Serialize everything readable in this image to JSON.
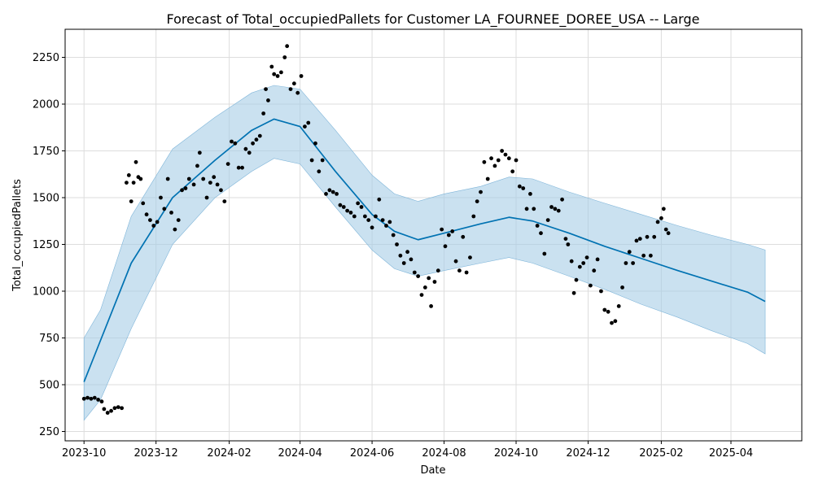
{
  "chart_data": {
    "type": "line",
    "title": "Forecast of Total_occupiedPallets for Customer LA_FOURNEE_DOREE_USA -- Large",
    "xlabel": "Date",
    "ylabel": "Total_occupiedPallets",
    "grid": true,
    "xlim": [
      "2023-09-15",
      "2025-05-31"
    ],
    "ylim": [
      200,
      2400
    ],
    "x_ticks": [
      "2023-10",
      "2023-12",
      "2024-02",
      "2024-04",
      "2024-06",
      "2024-08",
      "2024-10",
      "2024-12",
      "2025-02",
      "2025-04"
    ],
    "y_ticks": [
      250,
      500,
      750,
      1000,
      1250,
      1500,
      1750,
      2000,
      2250
    ],
    "colors": {
      "forecast": "#0072B2",
      "band": "#A6CDE6",
      "observed": "#000000",
      "grid": "#dddddd"
    },
    "series": [
      {
        "kind": "forecast",
        "points": [
          [
            "2023-10-01",
            515
          ],
          [
            "2023-11-10",
            1150
          ],
          [
            "2023-12-15",
            1500
          ],
          [
            "2024-01-20",
            1700
          ],
          [
            "2024-02-20",
            1860
          ],
          [
            "2024-03-10",
            1920
          ],
          [
            "2024-04-01",
            1880
          ],
          [
            "2024-05-01",
            1640
          ],
          [
            "2024-06-01",
            1410
          ],
          [
            "2024-06-20",
            1320
          ],
          [
            "2024-07-10",
            1275
          ],
          [
            "2024-08-01",
            1310
          ],
          [
            "2024-09-01",
            1360
          ],
          [
            "2024-09-25",
            1395
          ],
          [
            "2024-10-15",
            1375
          ],
          [
            "2024-11-15",
            1310
          ],
          [
            "2024-12-15",
            1240
          ],
          [
            "2025-01-15",
            1175
          ],
          [
            "2025-02-15",
            1110
          ],
          [
            "2025-03-15",
            1055
          ],
          [
            "2025-04-15",
            995
          ],
          [
            "2025-04-30",
            945
          ]
        ]
      },
      {
        "kind": "uncertainty",
        "points": [
          [
            "2023-10-01",
            310,
            750
          ],
          [
            "2023-10-15",
            420,
            900
          ],
          [
            "2023-11-10",
            800,
            1400
          ],
          [
            "2023-12-15",
            1250,
            1760
          ],
          [
            "2024-01-20",
            1500,
            1930
          ],
          [
            "2024-02-20",
            1640,
            2060
          ],
          [
            "2024-03-10",
            1710,
            2100
          ],
          [
            "2024-04-01",
            1680,
            2080
          ],
          [
            "2024-05-01",
            1450,
            1860
          ],
          [
            "2024-06-01",
            1220,
            1620
          ],
          [
            "2024-06-20",
            1120,
            1520
          ],
          [
            "2024-07-10",
            1080,
            1480
          ],
          [
            "2024-08-01",
            1110,
            1520
          ],
          [
            "2024-09-01",
            1150,
            1560
          ],
          [
            "2024-09-25",
            1180,
            1610
          ],
          [
            "2024-10-15",
            1150,
            1600
          ],
          [
            "2024-11-15",
            1080,
            1530
          ],
          [
            "2024-12-15",
            1010,
            1470
          ],
          [
            "2025-01-15",
            930,
            1410
          ],
          [
            "2025-02-15",
            860,
            1350
          ],
          [
            "2025-03-15",
            790,
            1300
          ],
          [
            "2025-04-15",
            720,
            1250
          ],
          [
            "2025-04-30",
            665,
            1220
          ]
        ]
      },
      {
        "kind": "observed",
        "points": [
          [
            "2023-10-01",
            425
          ],
          [
            "2023-10-04",
            430
          ],
          [
            "2023-10-07",
            425
          ],
          [
            "2023-10-10",
            430
          ],
          [
            "2023-10-13",
            420
          ],
          [
            "2023-10-16",
            410
          ],
          [
            "2023-10-18",
            370
          ],
          [
            "2023-10-21",
            350
          ],
          [
            "2023-10-24",
            360
          ],
          [
            "2023-10-27",
            375
          ],
          [
            "2023-10-30",
            380
          ],
          [
            "2023-11-02",
            375
          ],
          [
            "2023-11-06",
            1580
          ],
          [
            "2023-11-08",
            1620
          ],
          [
            "2023-11-10",
            1480
          ],
          [
            "2023-11-12",
            1580
          ],
          [
            "2023-11-14",
            1690
          ],
          [
            "2023-11-16",
            1610
          ],
          [
            "2023-11-18",
            1600
          ],
          [
            "2023-11-20",
            1470
          ],
          [
            "2023-11-23",
            1410
          ],
          [
            "2023-11-26",
            1380
          ],
          [
            "2023-11-29",
            1350
          ],
          [
            "2023-12-02",
            1370
          ],
          [
            "2023-12-05",
            1500
          ],
          [
            "2023-12-08",
            1440
          ],
          [
            "2023-12-11",
            1600
          ],
          [
            "2023-12-14",
            1420
          ],
          [
            "2023-12-17",
            1330
          ],
          [
            "2023-12-20",
            1380
          ],
          [
            "2023-12-23",
            1540
          ],
          [
            "2023-12-26",
            1550
          ],
          [
            "2023-12-29",
            1600
          ],
          [
            "2024-01-02",
            1570
          ],
          [
            "2024-01-05",
            1670
          ],
          [
            "2024-01-07",
            1740
          ],
          [
            "2024-01-10",
            1600
          ],
          [
            "2024-01-13",
            1500
          ],
          [
            "2024-01-16",
            1580
          ],
          [
            "2024-01-19",
            1610
          ],
          [
            "2024-01-22",
            1570
          ],
          [
            "2024-01-25",
            1540
          ],
          [
            "2024-01-28",
            1480
          ],
          [
            "2024-01-31",
            1680
          ],
          [
            "2024-02-03",
            1800
          ],
          [
            "2024-02-06",
            1790
          ],
          [
            "2024-02-09",
            1660
          ],
          [
            "2024-02-12",
            1660
          ],
          [
            "2024-02-15",
            1760
          ],
          [
            "2024-02-18",
            1740
          ],
          [
            "2024-02-21",
            1790
          ],
          [
            "2024-02-24",
            1810
          ],
          [
            "2024-02-27",
            1830
          ],
          [
            "2024-03-01",
            1950
          ],
          [
            "2024-03-03",
            2080
          ],
          [
            "2024-03-05",
            2020
          ],
          [
            "2024-03-08",
            2200
          ],
          [
            "2024-03-10",
            2160
          ],
          [
            "2024-03-13",
            2150
          ],
          [
            "2024-03-16",
            2170
          ],
          [
            "2024-03-19",
            2250
          ],
          [
            "2024-03-21",
            2310
          ],
          [
            "2024-03-24",
            2080
          ],
          [
            "2024-03-27",
            2110
          ],
          [
            "2024-03-30",
            2060
          ],
          [
            "2024-04-02",
            2150
          ],
          [
            "2024-04-05",
            1880
          ],
          [
            "2024-04-08",
            1900
          ],
          [
            "2024-04-11",
            1700
          ],
          [
            "2024-04-14",
            1790
          ],
          [
            "2024-04-17",
            1640
          ],
          [
            "2024-04-20",
            1700
          ],
          [
            "2024-04-23",
            1520
          ],
          [
            "2024-04-26",
            1540
          ],
          [
            "2024-04-29",
            1530
          ],
          [
            "2024-05-02",
            1520
          ],
          [
            "2024-05-05",
            1460
          ],
          [
            "2024-05-08",
            1450
          ],
          [
            "2024-05-11",
            1430
          ],
          [
            "2024-05-14",
            1420
          ],
          [
            "2024-05-17",
            1400
          ],
          [
            "2024-05-20",
            1470
          ],
          [
            "2024-05-23",
            1450
          ],
          [
            "2024-05-26",
            1400
          ],
          [
            "2024-05-29",
            1380
          ],
          [
            "2024-06-01",
            1340
          ],
          [
            "2024-06-04",
            1400
          ],
          [
            "2024-06-07",
            1490
          ],
          [
            "2024-06-10",
            1380
          ],
          [
            "2024-06-13",
            1350
          ],
          [
            "2024-06-16",
            1370
          ],
          [
            "2024-06-19",
            1300
          ],
          [
            "2024-06-22",
            1250
          ],
          [
            "2024-06-25",
            1190
          ],
          [
            "2024-06-28",
            1150
          ],
          [
            "2024-07-01",
            1210
          ],
          [
            "2024-07-04",
            1170
          ],
          [
            "2024-07-07",
            1100
          ],
          [
            "2024-07-10",
            1080
          ],
          [
            "2024-07-13",
            980
          ],
          [
            "2024-07-16",
            1020
          ],
          [
            "2024-07-19",
            1070
          ],
          [
            "2024-07-21",
            920
          ],
          [
            "2024-07-24",
            1050
          ],
          [
            "2024-07-27",
            1110
          ],
          [
            "2024-07-30",
            1330
          ],
          [
            "2024-08-02",
            1240
          ],
          [
            "2024-08-05",
            1300
          ],
          [
            "2024-08-08",
            1320
          ],
          [
            "2024-08-11",
            1160
          ],
          [
            "2024-08-14",
            1110
          ],
          [
            "2024-08-17",
            1290
          ],
          [
            "2024-08-20",
            1100
          ],
          [
            "2024-08-23",
            1180
          ],
          [
            "2024-08-26",
            1400
          ],
          [
            "2024-08-29",
            1480
          ],
          [
            "2024-09-01",
            1530
          ],
          [
            "2024-09-04",
            1690
          ],
          [
            "2024-09-07",
            1600
          ],
          [
            "2024-09-10",
            1710
          ],
          [
            "2024-09-13",
            1670
          ],
          [
            "2024-09-16",
            1700
          ],
          [
            "2024-09-19",
            1750
          ],
          [
            "2024-09-22",
            1730
          ],
          [
            "2024-09-25",
            1710
          ],
          [
            "2024-09-28",
            1640
          ],
          [
            "2024-10-01",
            1700
          ],
          [
            "2024-10-04",
            1560
          ],
          [
            "2024-10-07",
            1550
          ],
          [
            "2024-10-10",
            1440
          ],
          [
            "2024-10-13",
            1520
          ],
          [
            "2024-10-16",
            1440
          ],
          [
            "2024-10-19",
            1350
          ],
          [
            "2024-10-22",
            1310
          ],
          [
            "2024-10-25",
            1200
          ],
          [
            "2024-10-28",
            1380
          ],
          [
            "2024-10-31",
            1450
          ],
          [
            "2024-11-03",
            1440
          ],
          [
            "2024-11-06",
            1430
          ],
          [
            "2024-11-09",
            1490
          ],
          [
            "2024-11-12",
            1280
          ],
          [
            "2024-11-14",
            1250
          ],
          [
            "2024-11-17",
            1160
          ],
          [
            "2024-11-19",
            990
          ],
          [
            "2024-11-21",
            1060
          ],
          [
            "2024-11-24",
            1130
          ],
          [
            "2024-11-27",
            1150
          ],
          [
            "2024-11-30",
            1180
          ],
          [
            "2024-12-03",
            1030
          ],
          [
            "2024-12-06",
            1110
          ],
          [
            "2024-12-09",
            1170
          ],
          [
            "2024-12-12",
            1000
          ],
          [
            "2024-12-15",
            900
          ],
          [
            "2024-12-18",
            890
          ],
          [
            "2024-12-21",
            830
          ],
          [
            "2024-12-24",
            840
          ],
          [
            "2024-12-27",
            920
          ],
          [
            "2024-12-30",
            1020
          ],
          [
            "2025-01-02",
            1150
          ],
          [
            "2025-01-05",
            1210
          ],
          [
            "2025-01-08",
            1150
          ],
          [
            "2025-01-11",
            1270
          ],
          [
            "2025-01-14",
            1280
          ],
          [
            "2025-01-17",
            1190
          ],
          [
            "2025-01-20",
            1290
          ],
          [
            "2025-01-23",
            1190
          ],
          [
            "2025-01-26",
            1290
          ],
          [
            "2025-01-29",
            1370
          ],
          [
            "2025-02-01",
            1390
          ],
          [
            "2025-02-03",
            1440
          ],
          [
            "2025-02-05",
            1330
          ],
          [
            "2025-02-07",
            1310
          ]
        ]
      }
    ]
  }
}
